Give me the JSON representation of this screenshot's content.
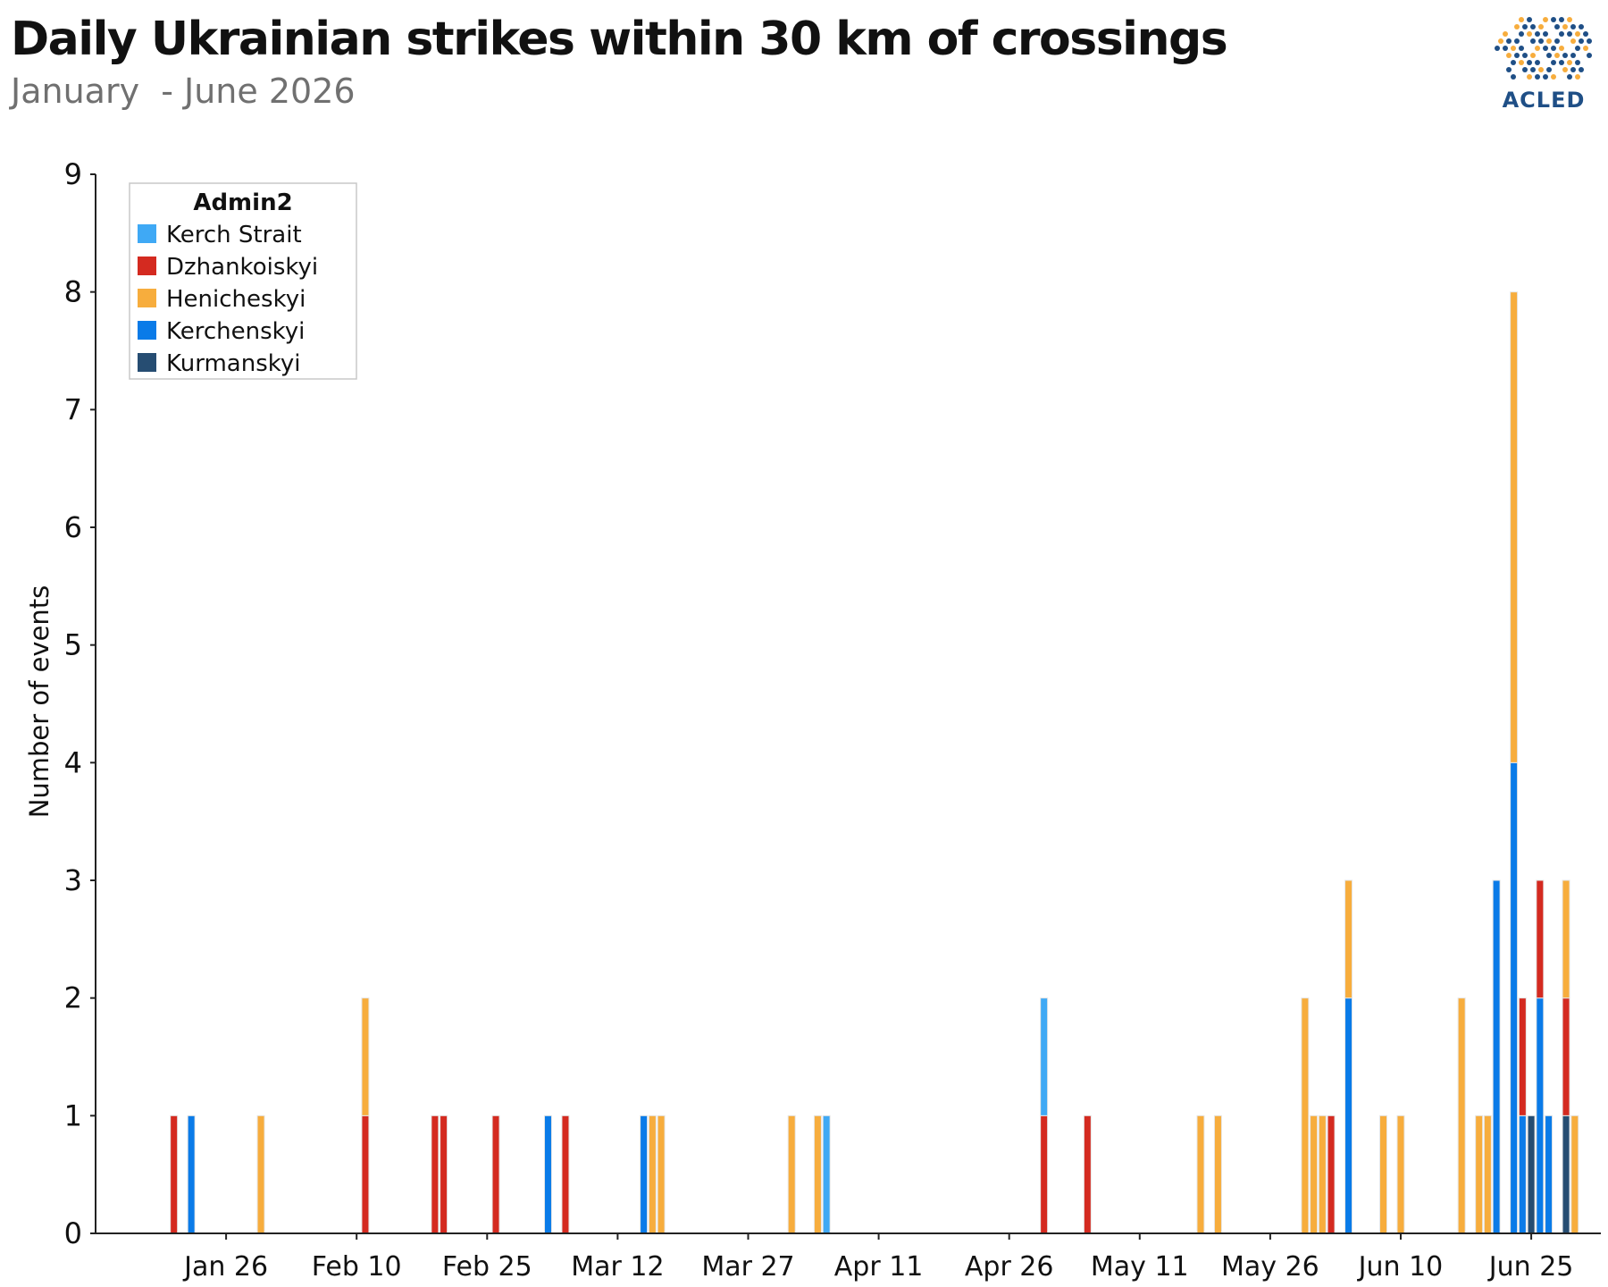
{
  "header": {
    "title": "Daily Ukrainian strikes within 30 km of crossings",
    "subtitle": "January  - June 2026",
    "logo_text": "ACLED"
  },
  "chart_data": {
    "type": "bar",
    "stacked": true,
    "ylabel": "Number of events",
    "ylim": [
      0,
      9
    ],
    "yticks": [
      0,
      1,
      2,
      3,
      4,
      5,
      6,
      7,
      8,
      9
    ],
    "xlim": [
      "2026-01-11",
      "2026-07-03"
    ],
    "xticks": [
      {
        "date": "2026-01-26",
        "label": "Jan 26"
      },
      {
        "date": "2026-02-10",
        "label": "Feb 10"
      },
      {
        "date": "2026-02-25",
        "label": "Feb 25"
      },
      {
        "date": "2026-03-12",
        "label": "Mar 12"
      },
      {
        "date": "2026-03-27",
        "label": "Mar 27"
      },
      {
        "date": "2026-04-11",
        "label": "Apr 11"
      },
      {
        "date": "2026-04-26",
        "label": "Apr 26"
      },
      {
        "date": "2026-05-11",
        "label": "May 11"
      },
      {
        "date": "2026-05-26",
        "label": "May 26"
      },
      {
        "date": "2026-06-10",
        "label": "Jun 10"
      },
      {
        "date": "2026-06-25",
        "label": "Jun 25"
      }
    ],
    "legend": {
      "title": "Admin2",
      "position": "top-left",
      "items": [
        {
          "name": "Kerch Strait",
          "color": "#3fa9f5"
        },
        {
          "name": "Dzhankoiskyi",
          "color": "#d42a20"
        },
        {
          "name": "Henicheskyi",
          "color": "#f7ad3d"
        },
        {
          "name": "Kerchenskyi",
          "color": "#0a7be8"
        },
        {
          "name": "Kurmanskyi",
          "color": "#264d72"
        }
      ]
    },
    "grid": false,
    "data": [
      {
        "date": "2026-01-20",
        "Dzhankoiskyi": 1
      },
      {
        "date": "2026-01-22",
        "Kerchenskyi": 1
      },
      {
        "date": "2026-01-30",
        "Henicheskyi": 1
      },
      {
        "date": "2026-02-11",
        "Henicheskyi": 1,
        "Dzhankoiskyi": 1
      },
      {
        "date": "2026-02-19",
        "Dzhankoiskyi": 1
      },
      {
        "date": "2026-02-20",
        "Dzhankoiskyi": 1
      },
      {
        "date": "2026-02-26",
        "Dzhankoiskyi": 1
      },
      {
        "date": "2026-03-04",
        "Kerchenskyi": 1
      },
      {
        "date": "2026-03-06",
        "Dzhankoiskyi": 1
      },
      {
        "date": "2026-03-15",
        "Kerchenskyi": 1
      },
      {
        "date": "2026-03-16",
        "Henicheskyi": 1
      },
      {
        "date": "2026-03-17",
        "Henicheskyi": 1
      },
      {
        "date": "2026-04-01",
        "Henicheskyi": 1
      },
      {
        "date": "2026-04-04",
        "Henicheskyi": 1
      },
      {
        "date": "2026-04-05",
        "Kerch Strait": 1
      },
      {
        "date": "2026-04-30",
        "Dzhankoiskyi": 1,
        "Kerch Strait": 1
      },
      {
        "date": "2026-05-05",
        "Dzhankoiskyi": 1
      },
      {
        "date": "2026-05-18",
        "Henicheskyi": 1
      },
      {
        "date": "2026-05-20",
        "Henicheskyi": 1
      },
      {
        "date": "2026-05-30",
        "Henicheskyi": 2
      },
      {
        "date": "2026-05-31",
        "Henicheskyi": 1
      },
      {
        "date": "2026-06-01",
        "Henicheskyi": 1
      },
      {
        "date": "2026-06-02",
        "Dzhankoiskyi": 1
      },
      {
        "date": "2026-06-04",
        "Kerchenskyi": 2,
        "Henicheskyi": 1
      },
      {
        "date": "2026-06-08",
        "Henicheskyi": 1
      },
      {
        "date": "2026-06-10",
        "Henicheskyi": 1
      },
      {
        "date": "2026-06-17",
        "Henicheskyi": 2
      },
      {
        "date": "2026-06-19",
        "Henicheskyi": 1
      },
      {
        "date": "2026-06-20",
        "Henicheskyi": 1
      },
      {
        "date": "2026-06-21",
        "Kerchenskyi": 3
      },
      {
        "date": "2026-06-23",
        "Kerchenskyi": 4,
        "Henicheskyi": 4
      },
      {
        "date": "2026-06-24",
        "Kerchenskyi": 1,
        "Dzhankoiskyi": 1
      },
      {
        "date": "2026-06-25",
        "Kurmanskyi": 1
      },
      {
        "date": "2026-06-26",
        "Kerchenskyi": 2,
        "Dzhankoiskyi": 1
      },
      {
        "date": "2026-06-27",
        "Kerchenskyi": 1
      },
      {
        "date": "2026-06-29",
        "Kurmanskyi": 1,
        "Henicheskyi": 1,
        "Dzhankoiskyi": 1
      },
      {
        "date": "2026-06-30",
        "Henicheskyi": 1
      }
    ]
  }
}
